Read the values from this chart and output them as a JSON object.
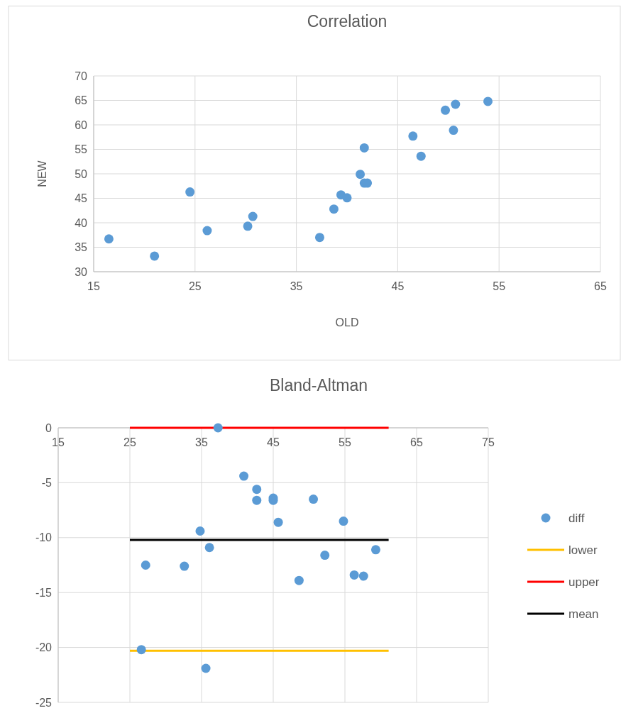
{
  "chart_data": [
    {
      "type": "scatter",
      "title": "Correlation",
      "xlabel": "OLD",
      "ylabel": "NEW",
      "xlim": [
        15,
        65
      ],
      "xticks": [
        15,
        25,
        35,
        45,
        55,
        65
      ],
      "ylim": [
        30,
        70
      ],
      "yticks": [
        30,
        35,
        40,
        45,
        50,
        55,
        60,
        65,
        70
      ],
      "grid": true,
      "series": [
        {
          "marker": "circle",
          "color": "#5b9bd5",
          "x": [
            16.5,
            21.0,
            24.5,
            26.2,
            30.2,
            30.7,
            37.3,
            38.7,
            39.4,
            40.0,
            41.3,
            41.7,
            41.7,
            42.0,
            46.5,
            47.3,
            49.7,
            50.7,
            50.5,
            53.9
          ],
          "values": [
            36.7,
            33.2,
            46.3,
            38.4,
            39.3,
            41.3,
            37.0,
            42.8,
            45.7,
            45.1,
            49.9,
            55.3,
            48.1,
            48.1,
            57.7,
            53.6,
            63.0,
            64.2,
            58.9,
            64.8
          ]
        }
      ]
    },
    {
      "type": "scatter",
      "title": "Bland-Altman",
      "xlim": [
        15,
        75
      ],
      "xticks": [
        15,
        25,
        35,
        45,
        55,
        65,
        75
      ],
      "ylim": [
        -25,
        0
      ],
      "yticks": [
        -25,
        -20,
        -15,
        -10,
        -5,
        0
      ],
      "grid": true,
      "legend": "right",
      "series": [
        {
          "marker": "circle",
          "name": "diff",
          "color": "#5b9bd5",
          "x": [
            37.3,
            40.9,
            42.7,
            42.7,
            45.0,
            45.0,
            45.7,
            50.6,
            54.8,
            34.8,
            36.1,
            27.2,
            32.6,
            52.2,
            59.3,
            48.6,
            56.3,
            57.6,
            26.6,
            35.6
          ],
          "values": [
            0,
            -4.4,
            -5.6,
            -6.6,
            -6.4,
            -6.6,
            -8.6,
            -6.5,
            -8.5,
            -9.4,
            -10.9,
            -12.5,
            -12.6,
            -11.6,
            -11.1,
            -13.9,
            -13.4,
            -13.5,
            -20.2,
            -21.9
          ]
        },
        {
          "type": "line",
          "name": "lower",
          "color": "#ffc000",
          "x": [
            25,
            61.1
          ],
          "values": [
            -20.3,
            -20.3
          ]
        },
        {
          "type": "line",
          "name": "upper",
          "color": "#ff0000",
          "x": [
            25,
            61.1
          ],
          "values": [
            0,
            0
          ]
        },
        {
          "type": "line",
          "name": "mean",
          "color": "#000000",
          "x": [
            25,
            61.1
          ],
          "values": [
            -10.2,
            -10.2
          ]
        }
      ]
    }
  ]
}
